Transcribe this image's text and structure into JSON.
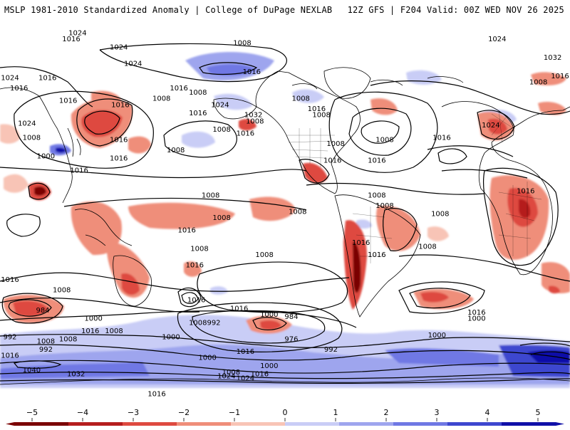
{
  "header": {
    "title": "MSLP 1981-2010 Standardized Anomaly | College of DuPage NEXLAB",
    "run_info": "12Z GFS | F204 Valid: 00Z WED NOV 26 2025"
  },
  "colors": {
    "neg5": "#7a0000",
    "neg4": "#b51d1d",
    "neg3": "#de4a40",
    "neg2": "#ef8e7a",
    "neg1": "#f8c4b6",
    "zero": "#ffffff",
    "pos1": "#c9cdf6",
    "pos2": "#9ea5ee",
    "pos3": "#6f78e4",
    "pos4": "#3e47cf",
    "pos5": "#1010a8",
    "land_outline": "#000000",
    "isobar": "#000000"
  },
  "isobar_labels": [
    {
      "text": "1024",
      "lon": -105,
      "lat": 80
    },
    {
      "text": "1016",
      "lon": -150,
      "lat": 65
    },
    {
      "text": "1024",
      "lon": -96,
      "lat": 72
    },
    {
      "text": "1016",
      "lon": -104,
      "lat": 52
    },
    {
      "text": "1008",
      "lon": -55,
      "lat": 58
    },
    {
      "text": "1016",
      "lon": -55,
      "lat": 48
    },
    {
      "text": "1032",
      "lon": -20,
      "lat": 47
    },
    {
      "text": "1024",
      "lon": -41,
      "lat": 52
    },
    {
      "text": "1008",
      "lon": 10,
      "lat": 55
    },
    {
      "text": "1016",
      "lon": 20,
      "lat": 50
    },
    {
      "text": "1008",
      "lon": 23,
      "lat": 47
    },
    {
      "text": "1024",
      "lon": -163,
      "lat": 43
    },
    {
      "text": "1008",
      "lon": 32,
      "lat": 33
    },
    {
      "text": "1016",
      "lon": 30,
      "lat": 25
    },
    {
      "text": "1016",
      "lon": -130,
      "lat": 20
    },
    {
      "text": "1008",
      "lon": 63,
      "lat": 3
    },
    {
      "text": "1008",
      "lon": 8,
      "lat": 0
    },
    {
      "text": "1008",
      "lon": -54,
      "lat": -18
    },
    {
      "text": "1016",
      "lon": -57,
      "lat": -26
    },
    {
      "text": "1016",
      "lon": -178,
      "lat": -33
    },
    {
      "text": "1008",
      "lon": -141,
      "lat": -38
    },
    {
      "text": "984",
      "lon": -153,
      "lat": -48
    },
    {
      "text": "1000",
      "lon": -121,
      "lat": -52
    },
    {
      "text": "992",
      "lon": -175,
      "lat": -61
    },
    {
      "text": "1008",
      "lon": -137,
      "lat": -62
    },
    {
      "text": "1016",
      "lon": -178,
      "lat": -70
    },
    {
      "text": "1040",
      "lon": -160,
      "lat": -77
    },
    {
      "text": "1032",
      "lon": -132,
      "lat": -79
    },
    {
      "text": "1024",
      "lon": -25,
      "lat": -81
    },
    {
      "text": "1016",
      "lon": -16,
      "lat": -79
    },
    {
      "text": "1008",
      "lon": -34,
      "lat": -78
    },
    {
      "text": "1000",
      "lon": -10,
      "lat": -75
    },
    {
      "text": "1016",
      "lon": -29,
      "lat": -47
    },
    {
      "text": "1000",
      "lon": -10,
      "lat": -50
    },
    {
      "text": "992",
      "lon": -45,
      "lat": -54
    },
    {
      "text": "984",
      "lon": 4,
      "lat": -51
    },
    {
      "text": "976",
      "lon": 4,
      "lat": -62
    },
    {
      "text": "992",
      "lon": 29,
      "lat": -67
    },
    {
      "text": "1016",
      "lon": 48,
      "lat": -15
    },
    {
      "text": "1008",
      "lon": 58,
      "lat": 8
    },
    {
      "text": "1024",
      "lon": 134,
      "lat": 84
    },
    {
      "text": "1032",
      "lon": 169,
      "lat": 75
    },
    {
      "text": "1016",
      "lon": -168,
      "lat": 60
    },
    {
      "text": "1008",
      "lon": 160,
      "lat": 63
    },
    {
      "text": "1024",
      "lon": 130,
      "lat": 42
    },
    {
      "text": "1016",
      "lon": 152,
      "lat": 10
    },
    {
      "text": "1008",
      "lon": 98,
      "lat": -1
    },
    {
      "text": "1008",
      "lon": 90,
      "lat": -17
    },
    {
      "text": "1016",
      "lon": 121,
      "lat": -49
    },
    {
      "text": "1000",
      "lon": 121,
      "lat": -52
    },
    {
      "text": "1000",
      "lon": 96,
      "lat": -60
    },
    {
      "text": "1016",
      "lon": 58,
      "lat": -21
    },
    {
      "text": "1008",
      "lon": 63,
      "lat": 35
    },
    {
      "text": "1016",
      "lon": 58,
      "lat": 25
    },
    {
      "text": "1016",
      "lon": 99,
      "lat": 36
    },
    {
      "text": "1024",
      "lon": 181,
      "lat": 65
    },
    {
      "text": "1016",
      "lon": 176,
      "lat": 66
    },
    {
      "text": "1000",
      "lon": 209,
      "lat": 27
    },
    {
      "text": "1008",
      "lon": 200,
      "lat": 36
    },
    {
      "text": "1016",
      "lon": 223,
      "lat": 54
    },
    {
      "text": "1024",
      "lon": 229,
      "lat": 88
    },
    {
      "text": "1016",
      "lon": 225,
      "lat": 84
    },
    {
      "text": "1016",
      "lon": 255,
      "lat": 35
    },
    {
      "text": "1008",
      "lon": 282,
      "lat": 55
    },
    {
      "text": "1016",
      "lon": 255,
      "lat": 26
    },
    {
      "text": "1008",
      "lon": 291,
      "lat": 30
    },
    {
      "text": "1016",
      "lon": 293,
      "lat": 60
    },
    {
      "text": "1008",
      "lon": 313,
      "lat": 8
    },
    {
      "text": "1016",
      "lon": 298,
      "lat": -9
    },
    {
      "text": "1008",
      "lon": 320,
      "lat": -3
    },
    {
      "text": "1008",
      "lon": 347,
      "lat": -21
    },
    {
      "text": "1016",
      "lon": 304,
      "lat": -43
    },
    {
      "text": "1008",
      "lon": 305,
      "lat": -54
    },
    {
      "text": "1008",
      "lon": 252,
      "lat": -58
    },
    {
      "text": "1016",
      "lon": 237,
      "lat": -58
    },
    {
      "text": "1008",
      "lon": 209,
      "lat": -63
    },
    {
      "text": "992",
      "lon": 209,
      "lat": -67
    },
    {
      "text": "1000",
      "lon": 288,
      "lat": -61
    },
    {
      "text": "1016",
      "lon": 335,
      "lat": -68
    },
    {
      "text": "1000",
      "lon": 311,
      "lat": -71
    },
    {
      "text": "1024",
      "lon": 323,
      "lat": -80
    },
    {
      "text": "1016",
      "lon": 279,
      "lat": -89
    },
    {
      "text": "1008",
      "lon": 333,
      "lat": 82
    },
    {
      "text": "1016",
      "lon": 339,
      "lat": 68
    },
    {
      "text": "1008",
      "lon": 341,
      "lat": 44
    },
    {
      "text": "1016",
      "lon": 335,
      "lat": 38
    },
    {
      "text": "1008",
      "lon": 320,
      "lat": 40
    }
  ],
  "colorbar": {
    "ticks": [
      "−5",
      "−4",
      "−3",
      "−2",
      "−1",
      "0",
      "1",
      "2",
      "3",
      "4",
      "5"
    ]
  }
}
